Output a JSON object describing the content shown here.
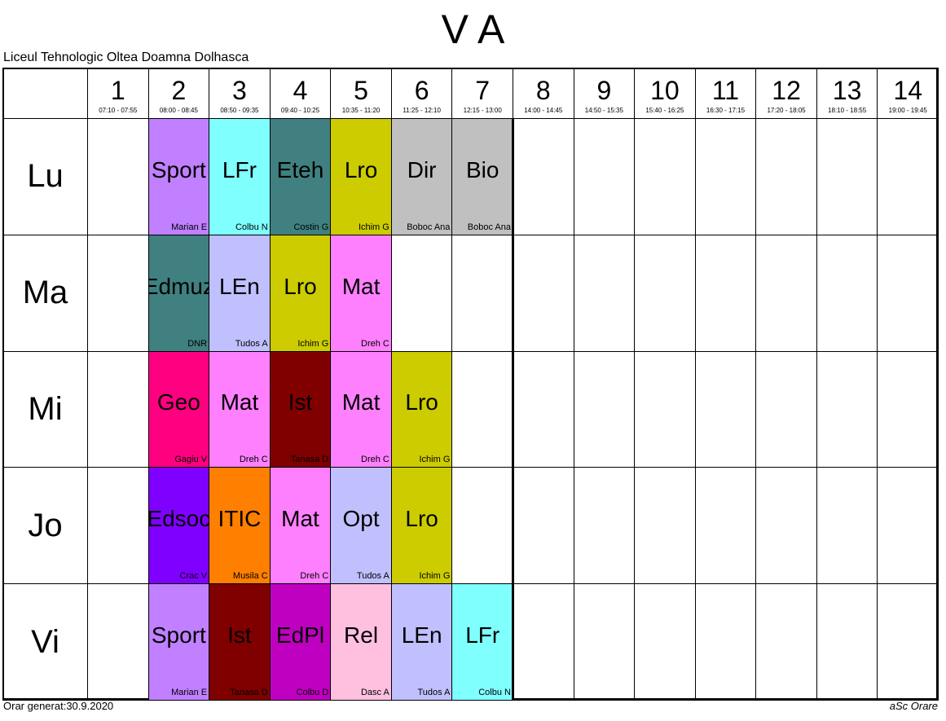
{
  "title": "V A",
  "school": "Liceul Tehnologic Oltea Doamna Dolhasca",
  "periods": [
    {
      "number": "1",
      "time": "07:10 - 07:55"
    },
    {
      "number": "2",
      "time": "08:00 - 08:45"
    },
    {
      "number": "3",
      "time": "08:50 - 09:35"
    },
    {
      "number": "4",
      "time": "09:40 - 10:25"
    },
    {
      "number": "5",
      "time": "10:35 - 11:20"
    },
    {
      "number": "6",
      "time": "11:25 - 12:10"
    },
    {
      "number": "7",
      "time": "12:15 - 13:00"
    },
    {
      "number": "8",
      "time": "14:00 - 14:45"
    },
    {
      "number": "9",
      "time": "14:50 - 15:35"
    },
    {
      "number": "10",
      "time": "15:40 - 16:25"
    },
    {
      "number": "11",
      "time": "16:30 - 17:15"
    },
    {
      "number": "12",
      "time": "17:20 - 18:05"
    },
    {
      "number": "13",
      "time": "18:10 - 18:55"
    },
    {
      "number": "14",
      "time": "19:00 - 19:45"
    }
  ],
  "days": [
    {
      "name": "Lu",
      "cells": [
        null,
        {
          "subject": "Sport",
          "teacher": "Marian E",
          "color": "#c080ff"
        },
        {
          "subject": "LFr",
          "teacher": "Colbu N",
          "color": "#80ffff"
        },
        {
          "subject": "Eteh",
          "teacher": "Costin G",
          "color": "#408080"
        },
        {
          "subject": "Lro",
          "teacher": "Ichim G",
          "color": "#cccc00"
        },
        {
          "subject": "Dir",
          "teacher": "Boboc Ana",
          "color": "#c0c0c0"
        },
        {
          "subject": "Bio",
          "teacher": "Boboc Ana",
          "color": "#c0c0c0"
        },
        null,
        null,
        null,
        null,
        null,
        null,
        null
      ]
    },
    {
      "name": "Ma",
      "cells": [
        null,
        {
          "subject": "Edmuz",
          "teacher": "DNR",
          "color": "#408080"
        },
        {
          "subject": "LEn",
          "teacher": "Tudos A",
          "color": "#c0c0ff"
        },
        {
          "subject": "Lro",
          "teacher": "Ichim G",
          "color": "#cccc00"
        },
        {
          "subject": "Mat",
          "teacher": "Dreh C",
          "color": "#ff80ff"
        },
        null,
        null,
        null,
        null,
        null,
        null,
        null,
        null,
        null
      ]
    },
    {
      "name": "Mi",
      "cells": [
        null,
        {
          "subject": "Geo",
          "teacher": "Gagiu V",
          "color": "#ff0080"
        },
        {
          "subject": "Mat",
          "teacher": "Dreh C",
          "color": "#ff80ff"
        },
        {
          "subject": "Ist",
          "teacher": "Tanasa D",
          "color": "#800000"
        },
        {
          "subject": "Mat",
          "teacher": "Dreh C",
          "color": "#ff80ff"
        },
        {
          "subject": "Lro",
          "teacher": "Ichim G",
          "color": "#cccc00"
        },
        null,
        null,
        null,
        null,
        null,
        null,
        null,
        null
      ]
    },
    {
      "name": "Jo",
      "cells": [
        null,
        {
          "subject": "Edsoc",
          "teacher": "Crac V",
          "color": "#8000ff"
        },
        {
          "subject": "ITIC",
          "teacher": "Musila C",
          "color": "#ff8000"
        },
        {
          "subject": "Mat",
          "teacher": "Dreh C",
          "color": "#ff80ff"
        },
        {
          "subject": "Opt",
          "teacher": "Tudos A",
          "color": "#c0c0ff"
        },
        {
          "subject": "Lro",
          "teacher": "Ichim G",
          "color": "#cccc00"
        },
        null,
        null,
        null,
        null,
        null,
        null,
        null,
        null
      ]
    },
    {
      "name": "Vi",
      "cells": [
        null,
        {
          "subject": "Sport",
          "teacher": "Marian E",
          "color": "#c080ff"
        },
        {
          "subject": "Ist",
          "teacher": "Tanasa D",
          "color": "#800000"
        },
        {
          "subject": "EdPl",
          "teacher": "Colbu D",
          "color": "#c000c0"
        },
        {
          "subject": "Rel",
          "teacher": "Dasc A",
          "color": "#ffc0e0"
        },
        {
          "subject": "LEn",
          "teacher": "Tudos A",
          "color": "#c0c0ff"
        },
        {
          "subject": "LFr",
          "teacher": "Colbu N",
          "color": "#80ffff"
        },
        null,
        null,
        null,
        null,
        null,
        null,
        null
      ]
    }
  ],
  "footer": {
    "generated": "Orar generat:30.9.2020",
    "brand": "aSc Orare"
  }
}
